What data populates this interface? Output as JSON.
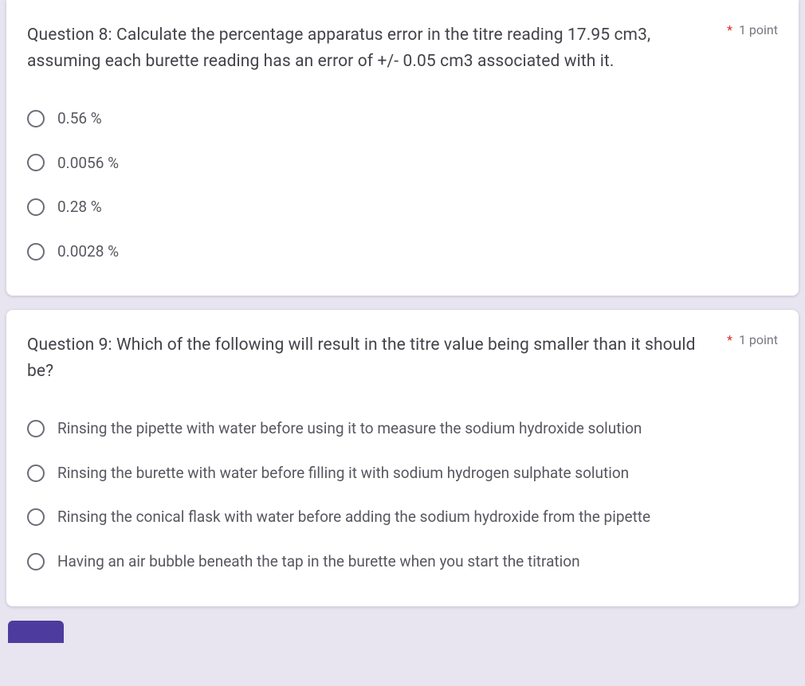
{
  "q8": {
    "text": "Question 8: Calculate the percentage apparatus error in the titre reading 17.95 cm3, assuming each burette reading has an error of +/- 0.05 cm3 associated with it.",
    "points": "1 point",
    "options": [
      "0.56 %",
      "0.0056 %",
      "0.28 %",
      "0.0028 %"
    ]
  },
  "q9": {
    "text": "Question 9: Which of the following will result in the titre value being smaller than it should be?",
    "points": "1 point",
    "options": [
      "Rinsing the pipette with water before using it to measure the sodium hydroxide solution",
      "Rinsing the burette with water before filling it with sodium hydrogen sulphate solution",
      "Rinsing the conical flask with water before adding the sodium hydroxide from the pipette",
      "Having an air bubble beneath the tap in the burette when you start the titration"
    ]
  },
  "colors": {
    "page_bg": "#e8e5f0",
    "card_bg": "#ffffff",
    "text_primary": "#45424a",
    "text_secondary": "#5a5660",
    "points_color": "#7a7580",
    "required": "#d93025",
    "radio_border": "#6f6b77",
    "button": "#4d3c9e"
  }
}
